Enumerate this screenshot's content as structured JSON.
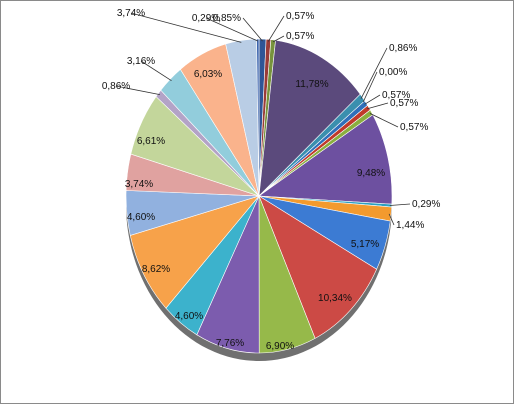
{
  "chart_data": {
    "type": "pie",
    "title": "",
    "style": "3d-tilted",
    "categories": [],
    "values": [
      0.85,
      0.57,
      0.57,
      11.78,
      0.86,
      0.0,
      0.57,
      0.57,
      0.57,
      9.48,
      0.29,
      1.44,
      5.17,
      10.34,
      6.9,
      7.76,
      4.6,
      8.62,
      4.6,
      3.74,
      6.61,
      0.86,
      3.16,
      6.03,
      3.74,
      0.29
    ],
    "labels": [
      "0,85%",
      "0,57%",
      "0,57%",
      "11,78%",
      "0,86%",
      "0,00%",
      "0,57%",
      "0,57%",
      "0,57%",
      "9,48%",
      "0,29%",
      "1,44%",
      "5,17%",
      "10,34%",
      "6,90%",
      "7,76%",
      "4,60%",
      "8,62%",
      "4,60%",
      "3,74%",
      "6,61%",
      "0,86%",
      "3,16%",
      "6,03%",
      "3,74%",
      "0,29%"
    ],
    "colors": [
      "#2f5596",
      "#9b3b38",
      "#77933c",
      "#5b4a7c",
      "#3a8fae",
      "#e98b2f",
      "#2f6fba",
      "#c0392b",
      "#8aae3e",
      "#6d50a0",
      "#2da0c0",
      "#f39a2e",
      "#3c7bd3",
      "#cc4a45",
      "#96b94a",
      "#7c5cae",
      "#3cb2cc",
      "#f7a24a",
      "#91b1df",
      "#e0a2a0",
      "#c3d69b",
      "#b3a3c7",
      "#92cddc",
      "#fab38c",
      "#b9cde5",
      "#3b64ad"
    ]
  }
}
